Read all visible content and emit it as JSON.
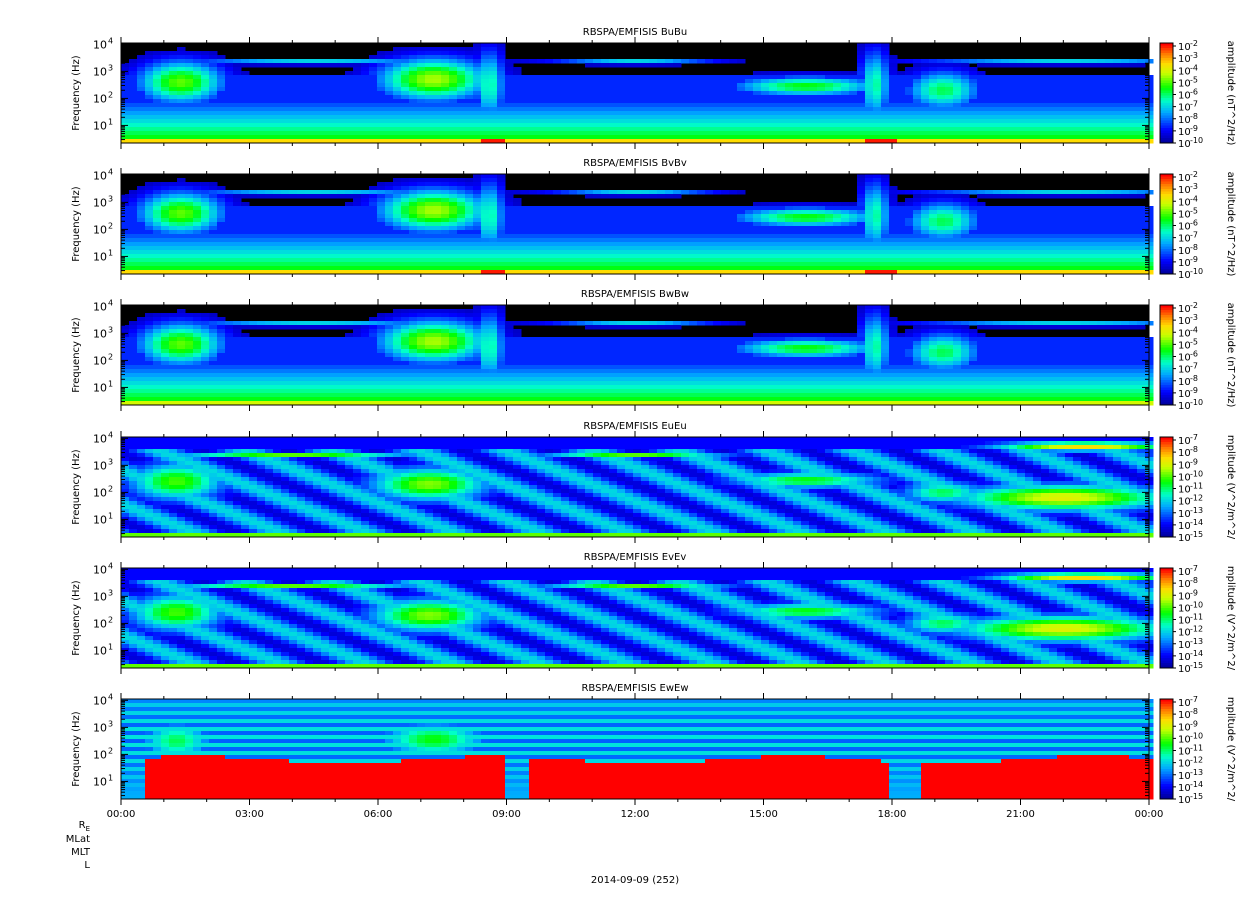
{
  "panels": [
    {
      "title": "RBSPA/EMFISIS  BuBu",
      "ylabel": "Frequency (Hz)",
      "zlabel": "amplitude (nT^2/Hz)",
      "yticks": [
        "10",
        "10",
        "10",
        "10"
      ],
      "ytick_exps": [
        "1",
        "2",
        "3",
        "4"
      ],
      "cbar_exps": [
        "-2",
        "-3",
        "-4",
        "-5",
        "-6",
        "-7",
        "-8",
        "-9",
        "-10"
      ],
      "kind": "B"
    },
    {
      "title": "RBSPA/EMFISIS  BvBv",
      "ylabel": "Frequency (Hz)",
      "zlabel": "amplitude (nT^2/Hz)",
      "yticks": [
        "10",
        "10",
        "10",
        "10"
      ],
      "ytick_exps": [
        "1",
        "2",
        "3",
        "4"
      ],
      "cbar_exps": [
        "-2",
        "-3",
        "-4",
        "-5",
        "-6",
        "-7",
        "-8",
        "-9",
        "-10"
      ],
      "kind": "B"
    },
    {
      "title": "RBSPA/EMFISIS  BwBw",
      "ylabel": "Frequency (Hz)",
      "zlabel": "amplitude (nT^2/Hz)",
      "yticks": [
        "10",
        "10",
        "10",
        "10"
      ],
      "ytick_exps": [
        "1",
        "2",
        "3",
        "4"
      ],
      "cbar_exps": [
        "-2",
        "-3",
        "-4",
        "-5",
        "-6",
        "-7",
        "-8",
        "-9",
        "-10"
      ],
      "kind": "Bw"
    },
    {
      "title": "RBSPA/EMFISIS  EuEu",
      "ylabel": "Frequency (Hz)",
      "zlabel": "mplitude (V^2/m^2/",
      "yticks": [
        "10",
        "10",
        "10",
        "10"
      ],
      "ytick_exps": [
        "1",
        "2",
        "3",
        "4"
      ],
      "cbar_exps": [
        "-7",
        "-8",
        "-9",
        "-10",
        "-11",
        "-12",
        "-13",
        "-14",
        "-15"
      ],
      "kind": "E"
    },
    {
      "title": "RBSPA/EMFISIS  EvEv",
      "ylabel": "Frequency (Hz)",
      "zlabel": "mplitude (V^2/m^2/",
      "yticks": [
        "10",
        "10",
        "10",
        "10"
      ],
      "ytick_exps": [
        "1",
        "2",
        "3",
        "4"
      ],
      "cbar_exps": [
        "-7",
        "-8",
        "-9",
        "-10",
        "-11",
        "-12",
        "-13",
        "-14",
        "-15"
      ],
      "kind": "E"
    },
    {
      "title": "RBSPA/EMFISIS  EwEw",
      "ylabel": "Frequency (Hz)",
      "zlabel": "mplitude (V^2/m^2/",
      "yticks": [
        "10",
        "10",
        "10",
        "10"
      ],
      "ytick_exps": [
        "1",
        "2",
        "3",
        "4"
      ],
      "cbar_exps": [
        "-7",
        "-8",
        "-9",
        "-10",
        "-11",
        "-12",
        "-13",
        "-14",
        "-15"
      ],
      "kind": "Ew"
    }
  ],
  "xaxis": {
    "ticks": [
      "00:00",
      "03:00",
      "06:00",
      "09:00",
      "12:00",
      "15:00",
      "18:00",
      "21:00",
      "00:00"
    ],
    "date": "2014-09-09 (252)"
  },
  "ephemeris_labels": {
    "re": "R",
    "re_sub": "E",
    "mlat": "MLat",
    "mlt": "MLT",
    "l": "L"
  },
  "colors": {
    "background": "#000000",
    "low": "#0000c8",
    "mid": "#00ff00",
    "high": "#ff0000"
  },
  "chart_data": [
    {
      "type": "heatmap",
      "title": "RBSPA/EMFISIS  BuBu",
      "xlabel": "",
      "ylabel": "Frequency (Hz)",
      "zlabel": "amplitude (nT^2/Hz)",
      "x_range": [
        "00:00",
        "00:00"
      ],
      "ylim": [
        2,
        10000
      ],
      "y_scale": "log",
      "zlim": [
        1e-10,
        0.01
      ],
      "z_scale": "log",
      "colorbar": "rainbow"
    },
    {
      "type": "heatmap",
      "title": "RBSPA/EMFISIS  BvBv",
      "xlabel": "",
      "ylabel": "Frequency (Hz)",
      "zlabel": "amplitude (nT^2/Hz)",
      "x_range": [
        "00:00",
        "00:00"
      ],
      "ylim": [
        2,
        10000
      ],
      "y_scale": "log",
      "zlim": [
        1e-10,
        0.01
      ],
      "z_scale": "log",
      "colorbar": "rainbow"
    },
    {
      "type": "heatmap",
      "title": "RBSPA/EMFISIS  BwBw",
      "xlabel": "",
      "ylabel": "Frequency (Hz)",
      "zlabel": "amplitude (nT^2/Hz)",
      "x_range": [
        "00:00",
        "00:00"
      ],
      "ylim": [
        2,
        10000
      ],
      "y_scale": "log",
      "zlim": [
        1e-10,
        0.01
      ],
      "z_scale": "log",
      "colorbar": "rainbow"
    },
    {
      "type": "heatmap",
      "title": "RBSPA/EMFISIS  EuEu",
      "xlabel": "",
      "ylabel": "Frequency (Hz)",
      "zlabel": "mplitude (V^2/m^2/",
      "x_range": [
        "00:00",
        "00:00"
      ],
      "ylim": [
        2,
        10000
      ],
      "y_scale": "log",
      "zlim": [
        1e-15,
        1e-07
      ],
      "z_scale": "log",
      "colorbar": "rainbow"
    },
    {
      "type": "heatmap",
      "title": "RBSPA/EMFISIS  EvEv",
      "xlabel": "",
      "ylabel": "Frequency (Hz)",
      "zlabel": "mplitude (V^2/m^2/",
      "x_range": [
        "00:00",
        "00:00"
      ],
      "ylim": [
        2,
        10000
      ],
      "y_scale": "log",
      "zlim": [
        1e-15,
        1e-07
      ],
      "z_scale": "log",
      "colorbar": "rainbow"
    },
    {
      "type": "heatmap",
      "title": "RBSPA/EMFISIS  EwEw",
      "xlabel": "2014-09-09 (252)",
      "ylabel": "Frequency (Hz)",
      "zlabel": "mplitude (V^2/m^2/",
      "x_range": [
        "00:00",
        "00:00"
      ],
      "ylim": [
        2,
        10000
      ],
      "y_scale": "log",
      "zlim": [
        1e-15,
        1e-07
      ],
      "z_scale": "log",
      "colorbar": "rainbow"
    }
  ]
}
